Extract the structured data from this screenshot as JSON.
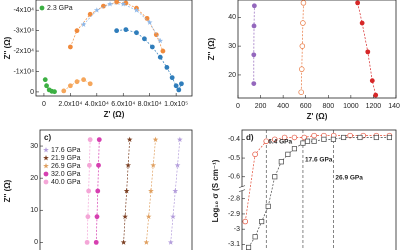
{
  "chart_data": [
    {
      "type": "scatter",
      "y_label": "Z'' (Ω)",
      "x_label": "Z' (Ω)",
      "xlim": [
        -6000,
        112000
      ],
      "ylim": [
        2000,
        -45000
      ],
      "xticks": [
        0,
        {
          "value": 20000,
          "label": "2.0x10⁴"
        },
        {
          "value": 40000,
          "label": "4.0x10⁴"
        },
        {
          "value": 60000,
          "label": "6.0x10⁴"
        },
        {
          "value": 80000,
          "label": "8.0x10⁴"
        },
        {
          "value": 100000,
          "label": "1.0x10⁵"
        }
      ],
      "yticks": [
        0,
        {
          "value": -10000,
          "label": "-1x10⁴"
        },
        {
          "value": -20000,
          "label": "-2x10⁴"
        },
        {
          "value": -30000,
          "label": "-3x10⁴"
        },
        {
          "value": -40000,
          "label": "-4x10⁴"
        }
      ],
      "series": [
        {
          "color": "#2f7dbb",
          "marker": "o",
          "x": [
            55000,
            62000,
            70000,
            76000,
            82000,
            88000,
            93000,
            97000,
            100000,
            102000,
            104000
          ],
          "values": [
            -30000,
            -30500,
            -29000,
            -26000,
            -22000,
            -17000,
            -12000,
            -7000,
            -3000,
            -1000,
            -4000
          ]
        },
        {
          "color": "#f08a3c",
          "marker": "o",
          "x": [
            20000,
            25000,
            35000,
            45000,
            55000,
            62000,
            70000,
            78000,
            85000,
            90000
          ],
          "values": [
            -22000,
            -30000,
            -38000,
            -42000,
            -44000,
            -43500,
            -41000,
            -36000,
            -28000,
            -20000
          ]
        },
        {
          "color": "#8fb8e8",
          "marker": "*",
          "x": [
            30000,
            40000,
            50000,
            60000,
            70000,
            80000,
            88000
          ],
          "values": [
            -33000,
            -40000,
            -43000,
            -43000,
            -40000,
            -34000,
            -25000
          ]
        },
        {
          "color": "#f5a65b",
          "marker": "o",
          "x": [
            15000,
            20000,
            25000,
            30000,
            35000
          ],
          "values": [
            -500,
            -3000,
            -5000,
            -6000,
            -4000
          ]
        },
        {
          "name": "2.3 GPa",
          "color": "#3cb043",
          "marker": "o",
          "x": [
            1000,
            2000,
            4000,
            6000,
            8000
          ],
          "values": [
            -6000,
            -3000,
            -1000,
            -300,
            -100
          ]
        }
      ]
    },
    {
      "type": "scatter",
      "y_label": "Z'' (Ω)",
      "x_label": "Z' (Ω)",
      "xlim": [
        0,
        1400
      ],
      "ylim": [
        12,
        46
      ],
      "xticks": [
        0,
        200,
        400,
        600,
        800,
        1000,
        1200,
        1400
      ],
      "yticks": [
        20,
        30,
        40
      ],
      "series": [
        {
          "color": "#9467bd",
          "marker": "o",
          "x": [
            140,
            140,
            142,
            145
          ],
          "values": [
            17,
            27,
            37,
            44
          ]
        },
        {
          "color": "#e8743b",
          "marker": "open-o",
          "x": [
            560,
            565,
            570,
            575,
            580
          ],
          "values": [
            14,
            22,
            30,
            38,
            45
          ]
        },
        {
          "color": "#d62728",
          "marker": "o",
          "x": [
            1060,
            1100,
            1150,
            1190,
            1220
          ],
          "values": [
            45,
            38,
            28,
            18,
            13
          ]
        }
      ]
    },
    {
      "type": "scatter",
      "panel": "c)",
      "y_label": "Z'' (Ω)",
      "xlim": [
        0,
        100
      ],
      "ylim": [
        -3,
        35
      ],
      "yticks": [
        0,
        10,
        20,
        30
      ],
      "series": [
        {
          "name": "17.6 GPa",
          "color": "#b39ddb",
          "marker": "*",
          "x": [
            86,
            87.5,
            89,
            90.5,
            92
          ],
          "values": [
            0,
            8,
            16,
            24,
            32
          ]
        },
        {
          "name": "21.9 GPa",
          "color": "#7b3f22",
          "marker": "*",
          "x": [
            55,
            56,
            57,
            58,
            59
          ],
          "values": [
            0,
            8,
            16,
            24,
            32
          ]
        },
        {
          "name": "26.9 GPa",
          "color": "#e0a060",
          "marker": "*",
          "x": [
            70,
            71.5,
            73,
            74.5,
            76
          ],
          "values": [
            0,
            8,
            16,
            24,
            32
          ]
        },
        {
          "name": "32.0 GPa",
          "color": "#d63fb0",
          "marker": "o",
          "x": [
            37,
            37.5,
            38,
            38.5,
            39
          ],
          "values": [
            0,
            8,
            16,
            24,
            32
          ]
        },
        {
          "name": "40.0 GPa",
          "color": "#f4a6d7",
          "marker": "o",
          "x": [
            31,
            31.5,
            32,
            32.5,
            33
          ],
          "values": [
            0,
            8,
            16,
            24,
            32
          ]
        }
      ]
    },
    {
      "type": "scatter",
      "panel": "d)",
      "y_label": "Log₁₀ σ (S cm⁻¹)",
      "xlim": [
        -1,
        46
      ],
      "ylim": [
        -3.15,
        -0.35
      ],
      "ybreak": [
        -2.75,
        -0.65
      ],
      "yticks": [
        -0.4,
        -0.5,
        -0.6,
        -2.8,
        -2.9,
        -3.0,
        -3.1
      ],
      "annotations": [
        {
          "text": "6.4 GPa",
          "x": 6.4,
          "color": "#e34a33"
        },
        {
          "text": "17.6 GPa",
          "x": 17.6,
          "color": "#333"
        },
        {
          "text": "26.9 GPa",
          "x": 26.9,
          "color": "#333"
        }
      ],
      "series": [
        {
          "color": "#e34a33",
          "marker": "open-o",
          "x": [
            0,
            3,
            6.4,
            9,
            12,
            15,
            18,
            21,
            24,
            27,
            32,
            36,
            40,
            44
          ],
          "values": [
            -2.95,
            -0.48,
            -0.41,
            -0.4,
            -0.39,
            -0.39,
            -0.39,
            -0.38,
            -0.38,
            -0.38,
            -0.38,
            -0.38,
            -0.38,
            -0.38
          ]
        },
        {
          "color": "#444",
          "marker": "s",
          "x": [
            1,
            3,
            5,
            7,
            9,
            11,
            13,
            15,
            17.6,
            19,
            21,
            24,
            26.9,
            30,
            35,
            40,
            44
          ],
          "values": [
            -3.12,
            -3.05,
            -2.95,
            -2.85,
            -0.6,
            -0.52,
            -0.48,
            -0.45,
            -0.42,
            -0.41,
            -0.41,
            -0.4,
            -0.4,
            -0.39,
            -0.39,
            -0.39,
            -0.39
          ]
        }
      ]
    }
  ]
}
